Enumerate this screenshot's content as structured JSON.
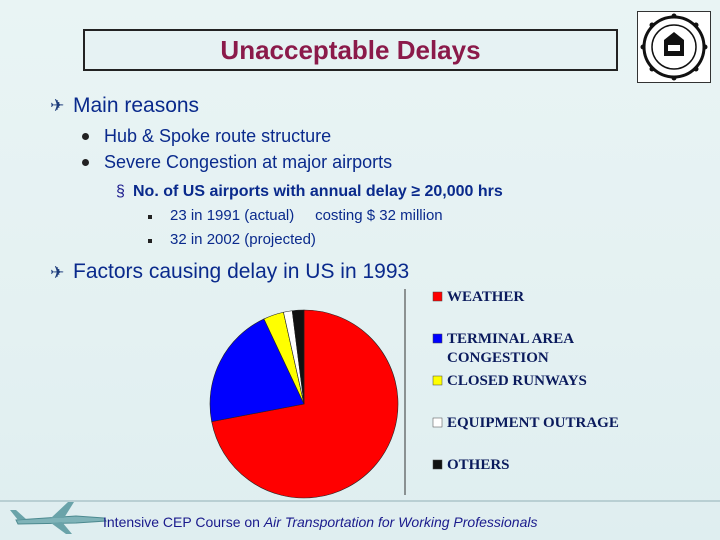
{
  "slide": {
    "title": "Unacceptable Delays",
    "main_reasons": "Main reasons",
    "reasons": [
      "Hub & Spoke route structure",
      "Severe Congestion at major airports"
    ],
    "sub_heading": "No. of US airports with annual delay ≥ 20,000 hrs",
    "sub_items": [
      "23 in 1991 (actual)     costing $ 32 million",
      "32 in 2002 (projected)"
    ],
    "factors": "Factors causing delay in US in 1993"
  },
  "footer": {
    "prefix": "Intensive CEP Course on ",
    "italic": "Air Transportation for Working Professionals"
  },
  "colors": {
    "text": "#0a2a8c",
    "title": "#8b1a4a",
    "weather": "#ff0000",
    "terminal": "#0000ff",
    "closed_runways": "#ffff00",
    "equipment": "#ffffff",
    "others": "#111111"
  },
  "chart_data": {
    "type": "pie",
    "labels": [
      "WEATHER",
      "TERMINAL AREA CONGESTION",
      "CLOSED RUNWAYS",
      "EQUIPMENT OUTRAGE",
      "OTHERS"
    ],
    "legend_lines": [
      [
        "WEATHER"
      ],
      [
        "TERMINAL AREA",
        "CONGESTION"
      ],
      [
        "CLOSED RUNWAYS"
      ],
      [
        "EQUIPMENT OUTRAGE"
      ],
      [
        "OTHERS"
      ]
    ],
    "values": [
      72,
      21,
      3.5,
      1.5,
      2
    ],
    "colors": [
      "#ff0000",
      "#0000ff",
      "#ffff00",
      "#ffffff",
      "#111111"
    ],
    "legend_placement": "right"
  }
}
